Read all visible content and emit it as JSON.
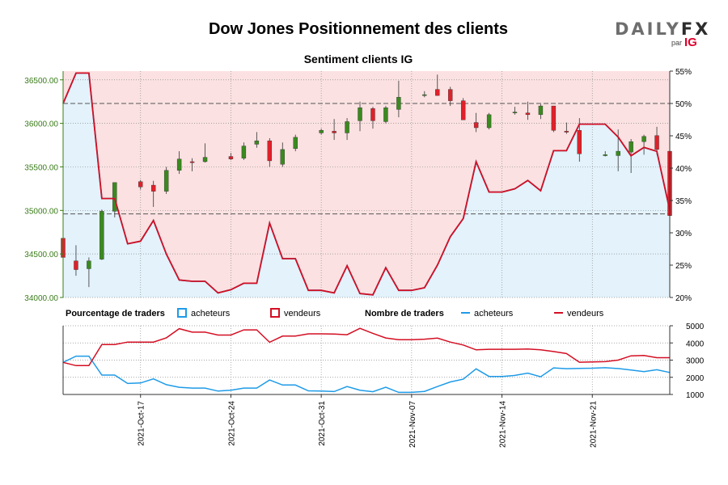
{
  "header": {
    "title": "Dow Jones Positionnement des clients",
    "subtitle": "Sentiment clients IG"
  },
  "logo": {
    "brand_a": "DAILY",
    "brand_b": "FX",
    "par": "par",
    "ig": "IG"
  },
  "colors": {
    "buyers": "#1e9be8",
    "sellers": "#d40f23",
    "buyers_fill": "#e3f2fb",
    "sellers_fill": "#fbe1e1",
    "candle_up": "#3a8a1e",
    "candle_down": "#e0202a",
    "price_axis": "#3a7d1a",
    "grid": "#8c8c8c"
  },
  "legend": {
    "pct_label": "Pourcentage de traders",
    "count_label": "Nombre de traders",
    "buyers": "acheteurs",
    "sellers": "vendeurs"
  },
  "chart_data": [
    {
      "type": "candlestick+line",
      "name": "main",
      "price_ylim": [
        34000,
        36600
      ],
      "price_ticks": [
        "34000.00",
        "34500.00",
        "35000.00",
        "35500.00",
        "36000.00",
        "36500.00"
      ],
      "pct_ylim": [
        20,
        55
      ],
      "pct_ticks": [
        "20%",
        "25%",
        "30%",
        "35%",
        "40%",
        "45%",
        "50%",
        "55%"
      ],
      "x_labels": [
        "2021-Oct-17",
        "2021-Oct-24",
        "2021-Oct-31",
        "2021-Nov-07",
        "2021-Nov-14",
        "2021-Nov-21"
      ],
      "x_label_index": [
        6,
        13,
        20,
        27,
        34,
        41
      ],
      "n_days": 46,
      "ohlc": [
        [
          0,
          34680,
          34950,
          34450,
          34460
        ],
        [
          1,
          34420,
          34600,
          34250,
          34320
        ],
        [
          2,
          34330,
          34460,
          34120,
          34420
        ],
        [
          3,
          34440,
          35010,
          34430,
          34990
        ],
        [
          4,
          34990,
          35320,
          34920,
          35320
        ],
        [
          6,
          35330,
          35350,
          35240,
          35270
        ],
        [
          7,
          35290,
          35340,
          35040,
          35220
        ],
        [
          8,
          35220,
          35500,
          35190,
          35460
        ],
        [
          9,
          35460,
          35680,
          35420,
          35590
        ],
        [
          10,
          35560,
          35600,
          35450,
          35555
        ],
        [
          11,
          35560,
          35770,
          35550,
          35610
        ],
        [
          13,
          35620,
          35660,
          35580,
          35590
        ],
        [
          14,
          35600,
          35780,
          35580,
          35740
        ],
        [
          15,
          35760,
          35900,
          35720,
          35800
        ],
        [
          16,
          35800,
          35830,
          35500,
          35570
        ],
        [
          17,
          35530,
          35780,
          35500,
          35700
        ],
        [
          18,
          35710,
          35870,
          35680,
          35840
        ],
        [
          20,
          35890,
          35940,
          35870,
          35920
        ],
        [
          21,
          35910,
          36050,
          35810,
          35890
        ],
        [
          22,
          35890,
          36060,
          35810,
          36020
        ],
        [
          23,
          36030,
          36250,
          35910,
          36180
        ],
        [
          24,
          36170,
          36190,
          35940,
          36030
        ],
        [
          25,
          36020,
          36200,
          36000,
          36180
        ],
        [
          26,
          36160,
          36490,
          36070,
          36300
        ],
        [
          28,
          36320,
          36370,
          36300,
          36330
        ],
        [
          29,
          36390,
          36560,
          36320,
          36320
        ],
        [
          30,
          36390,
          36420,
          36200,
          36260
        ],
        [
          31,
          36260,
          36290,
          36040,
          36040
        ],
        [
          32,
          36010,
          36120,
          35900,
          35950
        ],
        [
          33,
          35950,
          36120,
          35930,
          36100
        ],
        [
          35,
          36120,
          36190,
          36100,
          36130
        ],
        [
          36,
          36120,
          36250,
          36040,
          36100
        ],
        [
          37,
          36100,
          36220,
          36050,
          36200
        ],
        [
          38,
          36200,
          36200,
          35900,
          35920
        ],
        [
          39,
          35910,
          36010,
          35880,
          35900
        ],
        [
          40,
          35920,
          36060,
          35560,
          35650
        ],
        [
          42,
          35640,
          35680,
          35620,
          35640
        ],
        [
          43,
          35630,
          35930,
          35450,
          35680
        ],
        [
          44,
          35670,
          35820,
          35430,
          35790
        ],
        [
          45,
          35790,
          35870,
          35640,
          35850
        ],
        [
          46,
          35860,
          35960,
          35640,
          35700
        ],
        [
          47,
          35680,
          35700,
          34930,
          34940
        ]
      ],
      "buyers_pct": [
        [
          0,
          50
        ],
        [
          1,
          54.7
        ],
        [
          2,
          54.7
        ],
        [
          3,
          35.3
        ],
        [
          4,
          35.3
        ],
        [
          5,
          28.3
        ],
        [
          6,
          28.7
        ],
        [
          7,
          31.9
        ],
        [
          8,
          26.7
        ],
        [
          9,
          22.7
        ],
        [
          10,
          22.5
        ],
        [
          11,
          22.5
        ],
        [
          12,
          20.7
        ],
        [
          13,
          21.2
        ],
        [
          14,
          22.2
        ],
        [
          15,
          22.2
        ],
        [
          16,
          31.5
        ],
        [
          17,
          26.0
        ],
        [
          18,
          26.0
        ],
        [
          19,
          21.1
        ],
        [
          20,
          21.1
        ],
        [
          21,
          20.7
        ],
        [
          22,
          24.9
        ],
        [
          23,
          20.6
        ],
        [
          24,
          20.4
        ],
        [
          25,
          24.6
        ],
        [
          26,
          21.1
        ],
        [
          27,
          21.1
        ],
        [
          28,
          21.5
        ],
        [
          29,
          25.0
        ],
        [
          30,
          29.4
        ],
        [
          31,
          32.2
        ],
        [
          32,
          41.0
        ],
        [
          33,
          36.3
        ],
        [
          34,
          36.3
        ],
        [
          35,
          36.8
        ],
        [
          36,
          38.1
        ],
        [
          37,
          36.5
        ],
        [
          38,
          42.7
        ],
        [
          39,
          42.7
        ],
        [
          40,
          46.8
        ],
        [
          41,
          46.8
        ],
        [
          42,
          46.8
        ],
        [
          43,
          44.8
        ],
        [
          44,
          41.9
        ],
        [
          45,
          43.2
        ],
        [
          46,
          42.6
        ],
        [
          47,
          33.5
        ]
      ],
      "reference_lines": [
        {
          "axis": "pct",
          "value": 50,
          "style": "dashed"
        },
        {
          "axis": "price",
          "value": 34960,
          "style": "dashed"
        }
      ]
    },
    {
      "type": "line",
      "name": "counts",
      "ylim": [
        1000,
        5000
      ],
      "ticks": [
        "1000",
        "2000",
        "3000",
        "4000",
        "5000"
      ],
      "series": [
        {
          "name": "acheteurs",
          "values": [
            2870,
            3230,
            3230,
            2130,
            2130,
            1640,
            1670,
            1910,
            1570,
            1420,
            1370,
            1370,
            1200,
            1250,
            1370,
            1370,
            1840,
            1550,
            1550,
            1210,
            1200,
            1170,
            1460,
            1250,
            1160,
            1420,
            1120,
            1120,
            1180,
            1460,
            1730,
            1890,
            2490,
            2050,
            2050,
            2110,
            2240,
            2030,
            2550,
            2500,
            2520,
            2530,
            2560,
            2510,
            2420,
            2330,
            2440,
            2280
          ]
        },
        {
          "name": "vendeurs",
          "values": [
            2870,
            2680,
            2680,
            3910,
            3910,
            4050,
            4050,
            4050,
            4300,
            4830,
            4630,
            4630,
            4460,
            4460,
            4760,
            4760,
            4040,
            4400,
            4400,
            4530,
            4530,
            4520,
            4480,
            4850,
            4560,
            4290,
            4190,
            4190,
            4220,
            4280,
            4050,
            3880,
            3600,
            3630,
            3630,
            3630,
            3650,
            3600,
            3500,
            3380,
            2880,
            2890,
            2910,
            3000,
            3250,
            3270,
            3140,
            3140
          ]
        }
      ]
    }
  ]
}
